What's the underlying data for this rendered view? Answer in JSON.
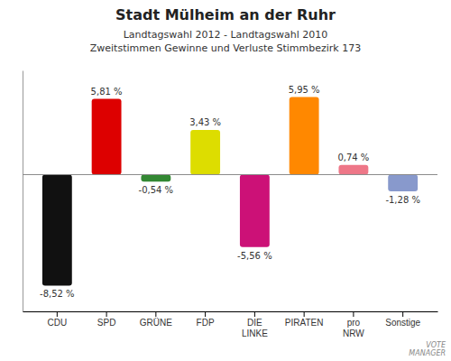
{
  "chart_data": {
    "type": "bar",
    "title": "Stadt Mülheim an der Ruhr",
    "subtitle": [
      "Landtagswahl 2012 - Landtagswahl 2010",
      "Zweitstimmen Gewinne und Verluste Stimmbezirk 173"
    ],
    "categories": [
      "CDU",
      "SPD",
      "GRÜNE",
      "FDP",
      "DIE\nLINKE",
      "PIRATEN",
      "pro\nNRW",
      "Sonstige"
    ],
    "values": [
      -8.52,
      5.81,
      -0.54,
      3.43,
      -5.56,
      5.95,
      0.74,
      -1.28
    ],
    "value_labels": [
      "-8,52 %",
      "5,81 %",
      "-0,54 %",
      "3,43 %",
      "-5,56 %",
      "5,95 %",
      "0,74 %",
      "-1,28 %"
    ],
    "colors": [
      "#111111",
      "#dd0000",
      "#338833",
      "#dddd00",
      "#cc1177",
      "#ff8800",
      "#ee7788",
      "#8899cc"
    ],
    "ylim": [
      -10.5,
      8.0
    ],
    "data_labels": true,
    "tick_labels": "x",
    "grid": false,
    "annotations": [
      "VOTE\nMANAGER"
    ]
  }
}
